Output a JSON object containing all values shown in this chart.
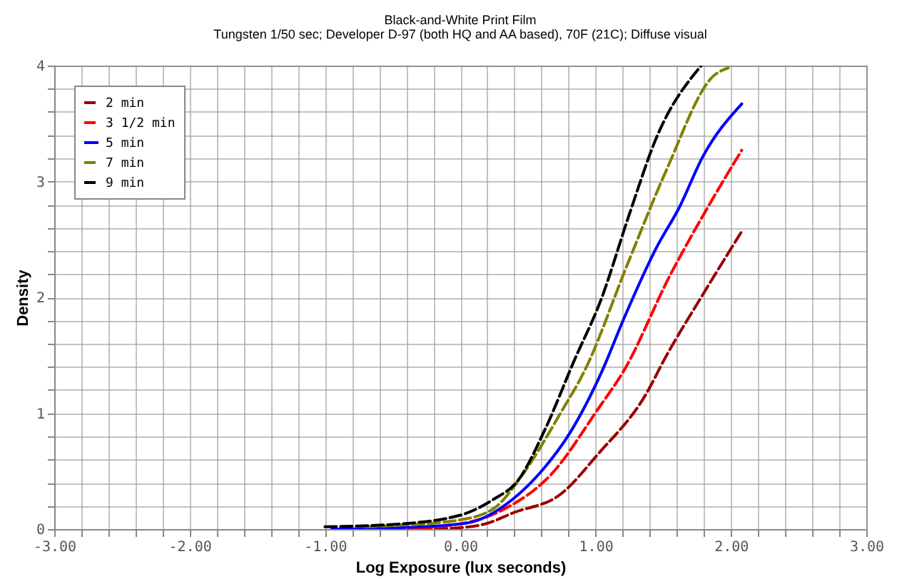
{
  "chart_data": {
    "type": "line",
    "title": "Black-and-White Print Film",
    "subtitle": "Tungsten  1/50 sec; Developer  D-97 (both HQ  and AA based), 70F (21C); Diffuse visual",
    "xlabel": "Log Exposure (lux seconds)",
    "ylabel": "Density",
    "series": [
      {
        "name": "2 min",
        "color": "#990000",
        "line_style": "dashed",
        "x": [
          -0.3,
          -0.03,
          0.2,
          0.39,
          0.74,
          1.02,
          1.37,
          1.52,
          1.79,
          2.08
        ],
        "values": [
          0.0,
          0.01,
          0.05,
          0.14,
          0.3,
          0.65,
          1.16,
          1.49,
          2.02,
          2.57
        ]
      },
      {
        "name": "3 1/2 min",
        "color": "#ff0000",
        "line_style": "dashed",
        "x": [
          -0.5,
          -0.03,
          0.32,
          0.67,
          1.02,
          1.21,
          1.55,
          1.83,
          2.08
        ],
        "values": [
          0.0,
          0.04,
          0.17,
          0.47,
          1.04,
          1.37,
          2.19,
          2.78,
          3.27
        ]
      },
      {
        "name": "5 min",
        "color": "#0000ff",
        "line_style": "solid",
        "x": [
          -0.95,
          -0.5,
          0.04,
          0.39,
          0.6,
          0.81,
          1.05,
          1.21,
          1.45,
          1.62,
          1.79,
          2.08
        ],
        "values": [
          0.0,
          0.01,
          0.05,
          0.26,
          0.5,
          0.83,
          1.37,
          1.82,
          2.43,
          2.78,
          3.21,
          3.67
        ]
      },
      {
        "name": "7 min",
        "color": "#808000",
        "line_style": "dashed",
        "x": [
          -0.7,
          -0.5,
          0.0,
          0.25,
          0.46,
          0.74,
          0.92,
          1.23,
          1.52,
          1.87,
          1.98
        ],
        "values": [
          0.02,
          0.03,
          0.08,
          0.18,
          0.47,
          1.0,
          1.37,
          2.27,
          3.09,
          3.91,
          3.98
        ]
      },
      {
        "name": "9 min",
        "color": "#000000",
        "line_style": "dashed",
        "x": [
          -1.0,
          -0.5,
          0.0,
          0.25,
          0.42,
          0.63,
          0.84,
          1.04,
          1.25,
          1.45,
          1.78
        ],
        "values": [
          0.02,
          0.04,
          0.12,
          0.26,
          0.41,
          0.87,
          1.45,
          1.98,
          2.72,
          3.38,
          4.0
        ]
      }
    ],
    "xlim": [
      -3,
      3
    ],
    "ylim": [
      0,
      4
    ],
    "xticks": [
      {
        "value": -3,
        "label": "-3.00"
      },
      {
        "value": -2.8,
        "label": null
      },
      {
        "value": -2.6,
        "label": null
      },
      {
        "value": -2.4,
        "label": null
      },
      {
        "value": -2.2,
        "label": null
      },
      {
        "value": -2,
        "label": "-2.00"
      },
      {
        "value": -1.8,
        "label": null
      },
      {
        "value": -1.6,
        "label": null
      },
      {
        "value": -1.4,
        "label": null
      },
      {
        "value": -1.2,
        "label": null
      },
      {
        "value": -1,
        "label": "-1.00"
      },
      {
        "value": -0.8,
        "label": null
      },
      {
        "value": -0.6,
        "label": null
      },
      {
        "value": -0.4,
        "label": null
      },
      {
        "value": -0.2,
        "label": null
      },
      {
        "value": 0,
        "label": "0.00"
      },
      {
        "value": 0.2,
        "label": null
      },
      {
        "value": 0.4,
        "label": null
      },
      {
        "value": 0.6,
        "label": null
      },
      {
        "value": 0.8,
        "label": null
      },
      {
        "value": 1,
        "label": "1.00"
      },
      {
        "value": 1.2,
        "label": null
      },
      {
        "value": 1.4,
        "label": null
      },
      {
        "value": 1.6,
        "label": null
      },
      {
        "value": 1.8,
        "label": null
      },
      {
        "value": 2,
        "label": "2.00"
      },
      {
        "value": 2.2,
        "label": null
      },
      {
        "value": 2.4,
        "label": null
      },
      {
        "value": 2.6,
        "label": null
      },
      {
        "value": 2.8,
        "label": null
      },
      {
        "value": 3,
        "label": "3.00"
      }
    ],
    "yticks": [
      0,
      {
        "value": 0.2,
        "label": null
      },
      {
        "value": 0.4,
        "label": null
      },
      {
        "value": 0.6,
        "label": null
      },
      {
        "value": 0.8,
        "label": null
      },
      1,
      {
        "value": 1.2,
        "label": null
      },
      {
        "value": 1.4,
        "label": null
      },
      {
        "value": 1.6,
        "label": null
      },
      {
        "value": 1.8,
        "label": null
      },
      2,
      {
        "value": 2.2,
        "label": null
      },
      {
        "value": 2.4,
        "label": null
      },
      {
        "value": 2.6,
        "label": null
      },
      {
        "value": 2.8,
        "label": null
      },
      3,
      {
        "value": 3.2,
        "label": null
      },
      {
        "value": 3.4,
        "label": null
      },
      {
        "value": 3.6,
        "label": null
      },
      {
        "value": 3.8,
        "label": null
      },
      4
    ],
    "grid": true,
    "legend": "top left",
    "marker": "none"
  }
}
